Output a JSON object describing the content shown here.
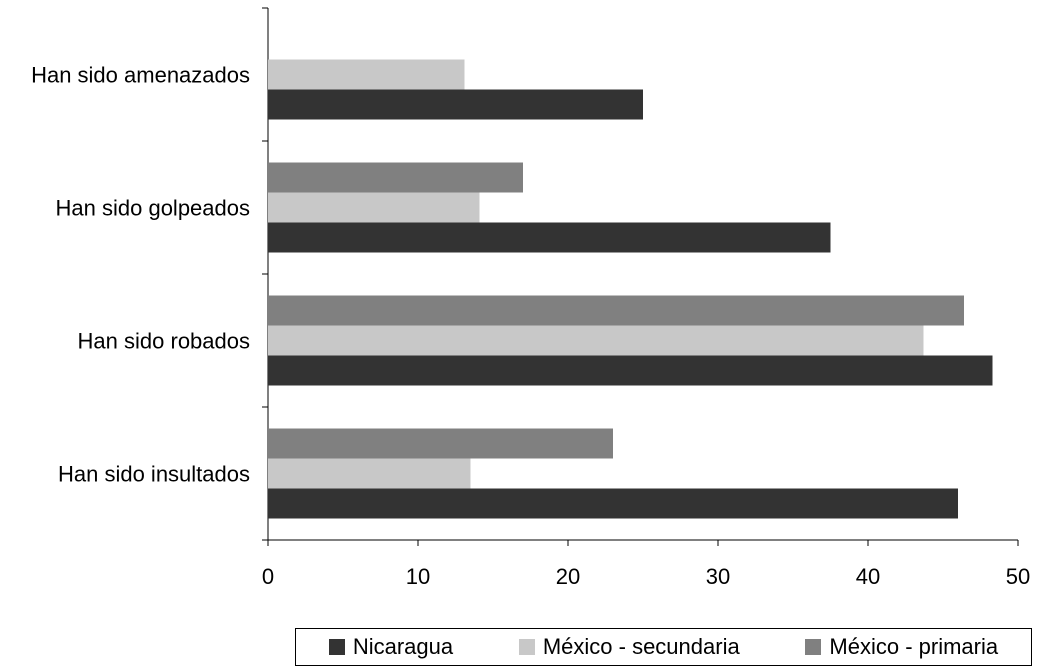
{
  "chart_data": {
    "type": "bar",
    "orientation": "horizontal",
    "categories": [
      "Han sido amenazados",
      "Han sido golpeados",
      "Han sido robados",
      "Han sido insultados"
    ],
    "series": [
      {
        "name": "Nicaragua",
        "color": "#333333",
        "values": [
          25,
          37.5,
          48.3,
          46
        ]
      },
      {
        "name": "México - secundaria",
        "color": "#c8c8c8",
        "values": [
          13.1,
          14.1,
          43.7,
          13.5
        ]
      },
      {
        "name": "México - primaria",
        "color": "#808080",
        "values": [
          null,
          17,
          46.4,
          23
        ]
      }
    ],
    "xlim": [
      0,
      50
    ],
    "xticks": [
      "0",
      "10",
      "20",
      "30",
      "40",
      "50"
    ],
    "grid": false,
    "legend_position": "bottom"
  }
}
